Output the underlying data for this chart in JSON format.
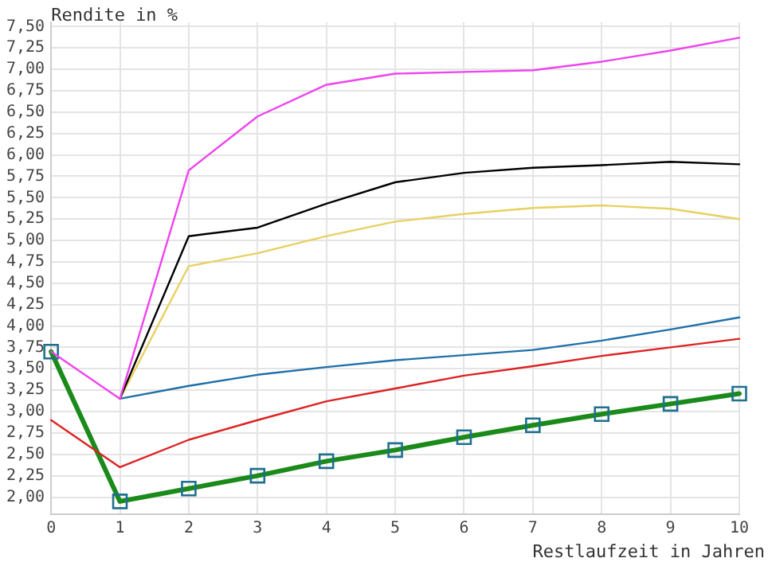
{
  "chart_data": {
    "type": "line",
    "ylabel": "Rendite in %",
    "xlabel": "Restlaufzeit in Jahren",
    "x": [
      0,
      1,
      2,
      3,
      4,
      5,
      6,
      7,
      8,
      9,
      10
    ],
    "series": [
      {
        "color": "#ee44ee",
        "marker": "none",
        "values": [
          3.7,
          3.15,
          5.82,
          6.45,
          6.82,
          6.95,
          6.97,
          6.99,
          7.09,
          7.22,
          7.37
        ]
      },
      {
        "color": "#000000",
        "marker": "none",
        "values": [
          null,
          3.15,
          5.05,
          5.15,
          5.43,
          5.68,
          5.79,
          5.85,
          5.88,
          5.92,
          5.89
        ]
      },
      {
        "color": "#e8d060",
        "marker": "none",
        "values": [
          null,
          3.15,
          4.7,
          4.85,
          5.05,
          5.22,
          5.31,
          5.38,
          5.41,
          5.37,
          5.25
        ]
      },
      {
        "color": "#1f6fa8",
        "marker": "none",
        "values": [
          null,
          3.15,
          3.3,
          3.43,
          3.52,
          3.6,
          3.66,
          3.72,
          3.83,
          3.96,
          4.1
        ]
      },
      {
        "color": "#dd2222",
        "marker": "none",
        "values": [
          2.9,
          2.35,
          2.67,
          2.9,
          3.12,
          3.27,
          3.42,
          3.53,
          3.65,
          3.75,
          3.85
        ]
      },
      {
        "color": "#1a8a1a",
        "marker": "square",
        "values": [
          3.7,
          1.95,
          2.1,
          2.25,
          2.42,
          2.55,
          2.7,
          2.84,
          2.97,
          3.09,
          3.21
        ]
      }
    ],
    "xlim": [
      0,
      10
    ],
    "xticks": [
      0,
      1,
      2,
      3,
      4,
      5,
      6,
      7,
      8,
      9,
      10
    ],
    "ylim": [
      1.8,
      7.55
    ],
    "yticks": [
      {
        "value": 2,
        "label": "2,00"
      },
      {
        "value": 2.25,
        "label": "2,25"
      },
      {
        "value": 2.5,
        "label": "2,50"
      },
      {
        "value": 2.75,
        "label": "2,75"
      },
      {
        "value": 3,
        "label": "3,00"
      },
      {
        "value": 3.25,
        "label": "3,25"
      },
      {
        "value": 3.5,
        "label": "3,50"
      },
      {
        "value": 3.75,
        "label": "3,75"
      },
      {
        "value": 4,
        "label": "4,00"
      },
      {
        "value": 4.25,
        "label": "4,25"
      },
      {
        "value": 4.5,
        "label": "4,50"
      },
      {
        "value": 4.75,
        "label": "4,75"
      },
      {
        "value": 5,
        "label": "5,00"
      },
      {
        "value": 5.25,
        "label": "5,25"
      },
      {
        "value": 5.5,
        "label": "5,50"
      },
      {
        "value": 5.75,
        "label": "5,75"
      },
      {
        "value": 6,
        "label": "6,00"
      },
      {
        "value": 6.25,
        "label": "6,25"
      },
      {
        "value": 6.5,
        "label": "6,50"
      },
      {
        "value": 6.75,
        "label": "6,75"
      },
      {
        "value": 7,
        "label": "7,00"
      },
      {
        "value": 7.25,
        "label": "7,25"
      },
      {
        "value": 7.5,
        "label": "7,50"
      }
    ],
    "grid": true,
    "legend": false,
    "line_style": "solid"
  }
}
